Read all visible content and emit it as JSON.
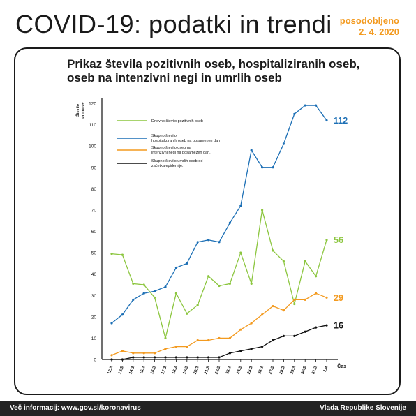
{
  "header": {
    "title": "COVID-19: podatki in trendi",
    "updated_line1": "posodobljeno",
    "updated_line2": "2. 4. 2020"
  },
  "footer": {
    "left": "Več informacij: www.gov.si/koronavirus",
    "right": "Vlada Republike Slovenije"
  },
  "chart_data": {
    "type": "line",
    "title": "Prikaz števila pozitivnih oseb, hospitaliziranih oseb, oseb na intenzivni negi in umrlih oseb",
    "ylabel": "Število primerov",
    "xlabel": "Čas",
    "ylim": [
      0,
      120
    ],
    "yticks": [
      0,
      10,
      20,
      30,
      40,
      50,
      60,
      70,
      80,
      90,
      100,
      110,
      120
    ],
    "categories": [
      "12.3.",
      "13.3.",
      "14.3.",
      "15.3.",
      "16.3.",
      "17.3.",
      "18.3.",
      "19.3.",
      "20.3.",
      "21.3.",
      "22.3.",
      "23.3.",
      "24.3.",
      "25.3.",
      "26.3.",
      "27.3.",
      "28.3.",
      "29.3.",
      "30.3.",
      "31.3.",
      "1.4."
    ],
    "series": [
      {
        "name": "Dnevno število pozitivnih oseb",
        "color": "#8cc63f",
        "values": [
          49.5,
          49,
          35.5,
          35,
          29,
          10,
          31,
          21.5,
          25.5,
          39,
          34.5,
          35.5,
          50,
          35.5,
          70,
          51,
          46,
          26,
          46,
          39,
          56
        ],
        "end_label": "56"
      },
      {
        "name": "Skupno število hospitaliziranih oseb na posamezen dan",
        "color": "#1c6fb5",
        "values": [
          17,
          21,
          28,
          31,
          32,
          34,
          43,
          45,
          55,
          56,
          55,
          64,
          72,
          98,
          90,
          90,
          101,
          115,
          119,
          119,
          112
        ],
        "end_label": "112"
      },
      {
        "name": "Skupno število oseb na intenzivni negi na posamezen dan.",
        "color": "#f39a1f",
        "values": [
          2,
          4,
          3,
          3,
          3,
          5,
          6,
          6,
          9,
          9,
          10,
          10,
          14,
          17,
          21,
          25,
          23,
          28,
          28,
          31,
          29
        ],
        "end_label": "29"
      },
      {
        "name": "Skupno število umrlih oseb od začetka epidemije.",
        "color": "#111111",
        "values": [
          0,
          0,
          1,
          1,
          1,
          1,
          1,
          1,
          1,
          1,
          1,
          3,
          4,
          5,
          6,
          9,
          11,
          11,
          13,
          15,
          16
        ],
        "end_label": "16"
      }
    ],
    "legend": "top-left",
    "grid": false
  }
}
